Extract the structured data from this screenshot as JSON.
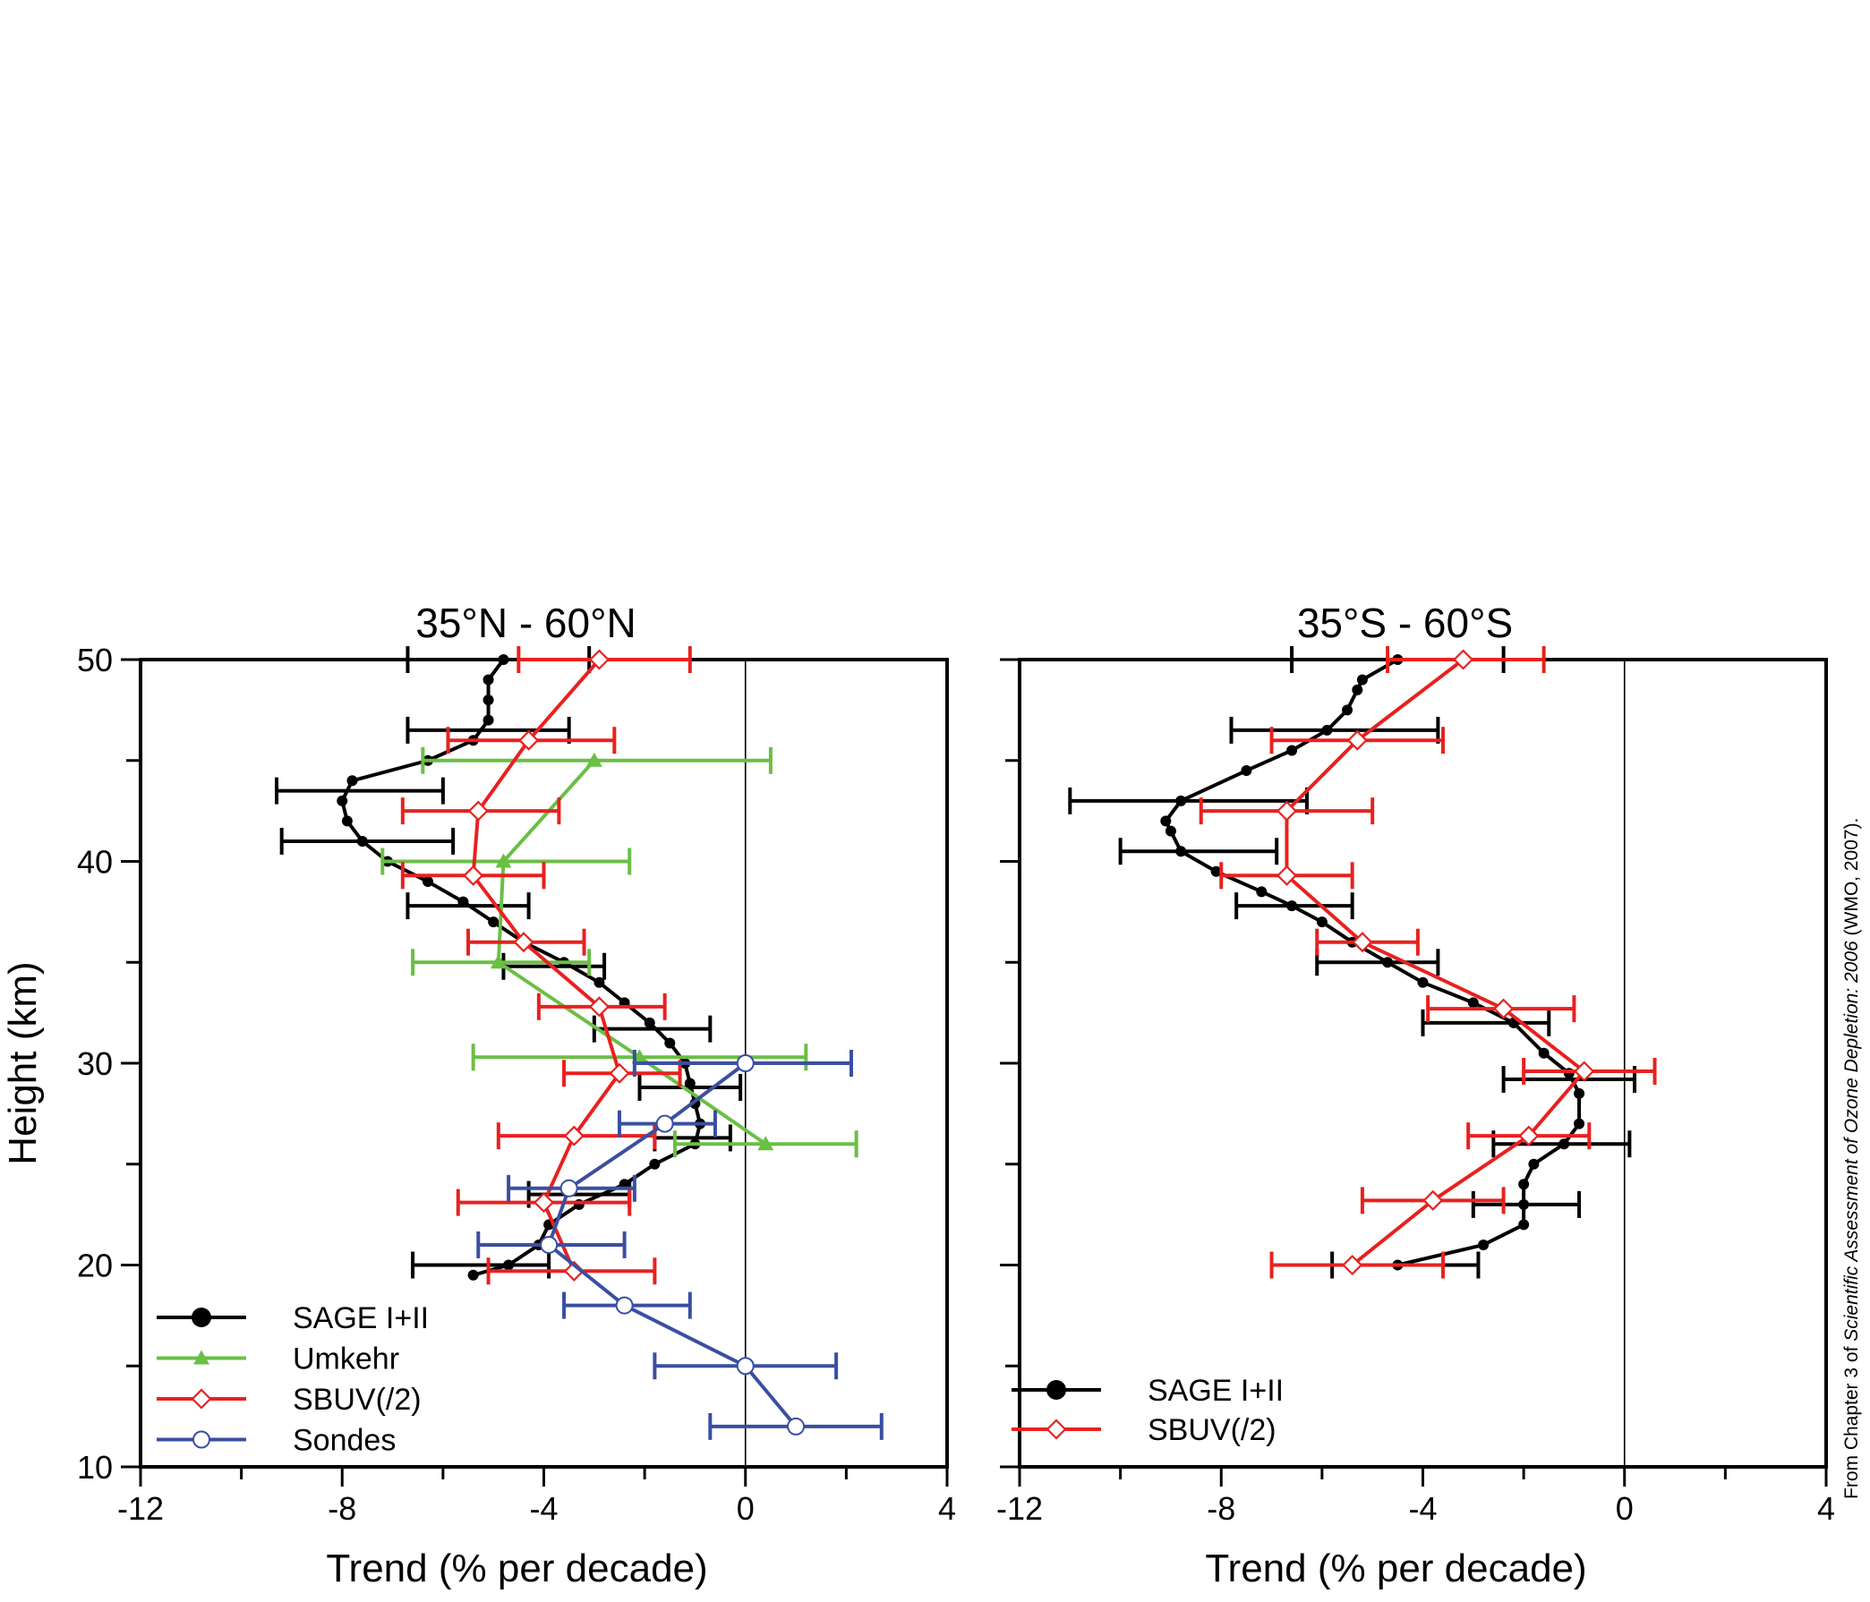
{
  "source_note": {
    "prefix": "From Chapter 3 of ",
    "title": "Scientific Assessment of Ozone Depletion: 2006",
    "suffix": " (WMO, 2007)."
  },
  "colors": {
    "SAGE": "#000000",
    "Umkehr": "#6abf45",
    "SBUV": "#e8211f",
    "Sondes": "#3a4fa1"
  },
  "chart_data": [
    {
      "type": "line",
      "title": "35°N - 60°N",
      "xlabel": "Trend (% per decade)",
      "ylabel": "Height (km)",
      "xlim": [
        -12,
        4
      ],
      "ylim": [
        10,
        50
      ],
      "xticks": [
        -12,
        -8,
        -4,
        0,
        4
      ],
      "yticks": [
        10,
        20,
        30,
        40,
        50
      ],
      "vline_at": 0,
      "grid": false,
      "legend": "bottom-left",
      "legend_entries": [
        "SAGE I+II",
        "Umkehr",
        "SBUV(/2)",
        "Sondes"
      ],
      "series": [
        {
          "name": "SAGE I+II",
          "color_key": "SAGE",
          "marker": "dot",
          "points": [
            [
              -4.8,
              50
            ],
            [
              -5.1,
              49
            ],
            [
              -5.1,
              48
            ],
            [
              -5.1,
              47
            ],
            [
              -5.4,
              46
            ],
            [
              -6.3,
              45
            ],
            [
              -7.8,
              44
            ],
            [
              -8.0,
              43
            ],
            [
              -7.9,
              42
            ],
            [
              -7.6,
              41
            ],
            [
              -7.1,
              40
            ],
            [
              -6.3,
              39
            ],
            [
              -5.6,
              38
            ],
            [
              -5.0,
              37
            ],
            [
              -4.4,
              36
            ],
            [
              -3.6,
              35
            ],
            [
              -2.9,
              34
            ],
            [
              -2.4,
              33
            ],
            [
              -1.9,
              32
            ],
            [
              -1.5,
              31
            ],
            [
              -1.2,
              30
            ],
            [
              -1.1,
              29
            ],
            [
              -1.0,
              28
            ],
            [
              -0.9,
              27
            ],
            [
              -1.0,
              26
            ],
            [
              -1.8,
              25
            ],
            [
              -2.4,
              24
            ],
            [
              -3.3,
              23
            ],
            [
              -3.9,
              22
            ],
            [
              -4.1,
              21
            ],
            [
              -4.7,
              20
            ],
            [
              -5.4,
              19.5
            ]
          ],
          "errorbars": [
            {
              "y": 50,
              "lo": -6.7,
              "hi": -3.1
            },
            {
              "y": 46.5,
              "lo": -6.7,
              "hi": -3.5
            },
            {
              "y": 43.5,
              "lo": -9.3,
              "hi": -6.0
            },
            {
              "y": 41,
              "lo": -9.2,
              "hi": -5.8
            },
            {
              "y": 37.8,
              "lo": -6.7,
              "hi": -4.3
            },
            {
              "y": 34.8,
              "lo": -4.8,
              "hi": -2.8
            },
            {
              "y": 31.7,
              "lo": -3.0,
              "hi": -0.7
            },
            {
              "y": 28.8,
              "lo": -2.1,
              "hi": -0.1
            },
            {
              "y": 26.3,
              "lo": -1.8,
              "hi": -0.3
            },
            {
              "y": 23.5,
              "lo": -4.3,
              "hi": -2.3
            },
            {
              "y": 20,
              "lo": -6.6,
              "hi": -3.9
            }
          ]
        },
        {
          "name": "Umkehr",
          "color_key": "Umkehr",
          "marker": "triangle",
          "points": [
            [
              -3.0,
              45
            ],
            [
              -4.8,
              40
            ],
            [
              -4.9,
              35
            ],
            [
              -2.1,
              30.3
            ],
            [
              0.4,
              26
            ]
          ],
          "errorbars": [
            {
              "y": 45,
              "lo": -6.4,
              "hi": 0.5
            },
            {
              "y": 40,
              "lo": -7.2,
              "hi": -2.3
            },
            {
              "y": 35,
              "lo": -6.6,
              "hi": -3.1
            },
            {
              "y": 30.3,
              "lo": -5.4,
              "hi": 1.2
            },
            {
              "y": 26,
              "lo": -1.4,
              "hi": 2.2
            }
          ]
        },
        {
          "name": "SBUV(/2)",
          "color_key": "SBUV",
          "marker": "diamond",
          "points": [
            [
              -2.9,
              50
            ],
            [
              -4.3,
              46
            ],
            [
              -5.3,
              42.5
            ],
            [
              -5.4,
              39.3
            ],
            [
              -4.4,
              36
            ],
            [
              -2.9,
              32.8
            ],
            [
              -2.5,
              29.5
            ],
            [
              -3.4,
              26.4
            ],
            [
              -4.0,
              23.1
            ],
            [
              -3.4,
              19.7
            ]
          ],
          "errorbars": [
            {
              "y": 50,
              "lo": -4.5,
              "hi": -1.1
            },
            {
              "y": 46,
              "lo": -5.9,
              "hi": -2.6
            },
            {
              "y": 42.5,
              "lo": -6.8,
              "hi": -3.7
            },
            {
              "y": 39.3,
              "lo": -6.8,
              "hi": -4.0
            },
            {
              "y": 36,
              "lo": -5.5,
              "hi": -3.2
            },
            {
              "y": 32.8,
              "lo": -4.1,
              "hi": -1.6
            },
            {
              "y": 29.5,
              "lo": -3.6,
              "hi": -1.3
            },
            {
              "y": 26.4,
              "lo": -4.9,
              "hi": -1.8
            },
            {
              "y": 23.1,
              "lo": -5.7,
              "hi": -2.3
            },
            {
              "y": 19.7,
              "lo": -5.1,
              "hi": -1.8
            }
          ]
        },
        {
          "name": "Sondes",
          "color_key": "Sondes",
          "marker": "circle",
          "points": [
            [
              0.0,
              30
            ],
            [
              -1.6,
              27
            ],
            [
              -3.5,
              23.8
            ],
            [
              -3.9,
              21
            ],
            [
              -2.4,
              18
            ],
            [
              0.0,
              15
            ],
            [
              1.0,
              12
            ]
          ],
          "errorbars": [
            {
              "y": 30,
              "lo": -2.2,
              "hi": 2.1
            },
            {
              "y": 27,
              "lo": -2.5,
              "hi": -0.6
            },
            {
              "y": 23.8,
              "lo": -4.7,
              "hi": -2.2
            },
            {
              "y": 21,
              "lo": -5.3,
              "hi": -2.4
            },
            {
              "y": 18,
              "lo": -3.6,
              "hi": -1.1
            },
            {
              "y": 15,
              "lo": -1.8,
              "hi": 1.8
            },
            {
              "y": 12,
              "lo": -0.7,
              "hi": 2.7
            }
          ]
        }
      ]
    },
    {
      "type": "line",
      "title": "35°S - 60°S",
      "xlabel": "Trend (% per decade)",
      "xlim": [
        -12,
        4
      ],
      "ylim": [
        10,
        50
      ],
      "xticks": [
        -12,
        -8,
        -4,
        0,
        4
      ],
      "yticks": [
        10,
        20,
        30,
        40,
        50
      ],
      "vline_at": 0,
      "grid": false,
      "legend": "bottom-left",
      "legend_entries": [
        "SAGE I+II",
        "SBUV(/2)"
      ],
      "series": [
        {
          "name": "SAGE I+II",
          "color_key": "SAGE",
          "marker": "dot",
          "points": [
            [
              -4.5,
              50
            ],
            [
              -5.2,
              49
            ],
            [
              -5.3,
              48.5
            ],
            [
              -5.5,
              47.5
            ],
            [
              -5.9,
              46.5
            ],
            [
              -6.6,
              45.5
            ],
            [
              -7.5,
              44.5
            ],
            [
              -8.8,
              43
            ],
            [
              -9.1,
              42
            ],
            [
              -9.0,
              41.5
            ],
            [
              -8.8,
              40.5
            ],
            [
              -8.1,
              39.5
            ],
            [
              -7.2,
              38.5
            ],
            [
              -6.6,
              37.8
            ],
            [
              -6.0,
              37
            ],
            [
              -5.4,
              36
            ],
            [
              -4.7,
              35
            ],
            [
              -4.0,
              34
            ],
            [
              -3.0,
              33
            ],
            [
              -2.2,
              32
            ],
            [
              -1.6,
              30.5
            ],
            [
              -1.1,
              29.5
            ],
            [
              -0.9,
              28.5
            ],
            [
              -0.9,
              27
            ],
            [
              -1.2,
              26
            ],
            [
              -1.8,
              25
            ],
            [
              -2.0,
              24
            ],
            [
              -2.0,
              23
            ],
            [
              -2.0,
              22
            ],
            [
              -2.8,
              21
            ],
            [
              -4.5,
              20
            ]
          ],
          "errorbars": [
            {
              "y": 50,
              "lo": -6.6,
              "hi": -2.4
            },
            {
              "y": 46.5,
              "lo": -7.8,
              "hi": -3.7
            },
            {
              "y": 43,
              "lo": -11.0,
              "hi": -6.3
            },
            {
              "y": 40.5,
              "lo": -10.0,
              "hi": -6.9
            },
            {
              "y": 37.8,
              "lo": -7.7,
              "hi": -5.4
            },
            {
              "y": 35,
              "lo": -6.1,
              "hi": -3.7
            },
            {
              "y": 32,
              "lo": -4.0,
              "hi": -1.5
            },
            {
              "y": 29.2,
              "lo": -2.4,
              "hi": 0.2
            },
            {
              "y": 26,
              "lo": -2.6,
              "hi": 0.1
            },
            {
              "y": 23,
              "lo": -3.0,
              "hi": -0.9
            },
            {
              "y": 20,
              "lo": -5.8,
              "hi": -2.9
            }
          ]
        },
        {
          "name": "SBUV(/2)",
          "color_key": "SBUV",
          "marker": "diamond",
          "points": [
            [
              -3.2,
              50
            ],
            [
              -5.3,
              46
            ],
            [
              -6.7,
              42.5
            ],
            [
              -6.7,
              39.3
            ],
            [
              -5.2,
              36
            ],
            [
              -2.4,
              32.7
            ],
            [
              -0.8,
              29.6
            ],
            [
              -1.9,
              26.4
            ],
            [
              -3.8,
              23.2
            ],
            [
              -5.4,
              20
            ]
          ],
          "errorbars": [
            {
              "y": 50,
              "lo": -4.7,
              "hi": -1.6
            },
            {
              "y": 46,
              "lo": -7.0,
              "hi": -3.6
            },
            {
              "y": 42.5,
              "lo": -8.4,
              "hi": -5.0
            },
            {
              "y": 39.3,
              "lo": -8.0,
              "hi": -5.4
            },
            {
              "y": 36,
              "lo": -6.1,
              "hi": -4.1
            },
            {
              "y": 32.7,
              "lo": -3.9,
              "hi": -1.0
            },
            {
              "y": 29.6,
              "lo": -2.0,
              "hi": 0.6
            },
            {
              "y": 26.4,
              "lo": -3.1,
              "hi": -0.7
            },
            {
              "y": 23.2,
              "lo": -5.2,
              "hi": -2.4
            },
            {
              "y": 20,
              "lo": -7.0,
              "hi": -3.6
            }
          ]
        }
      ]
    }
  ]
}
